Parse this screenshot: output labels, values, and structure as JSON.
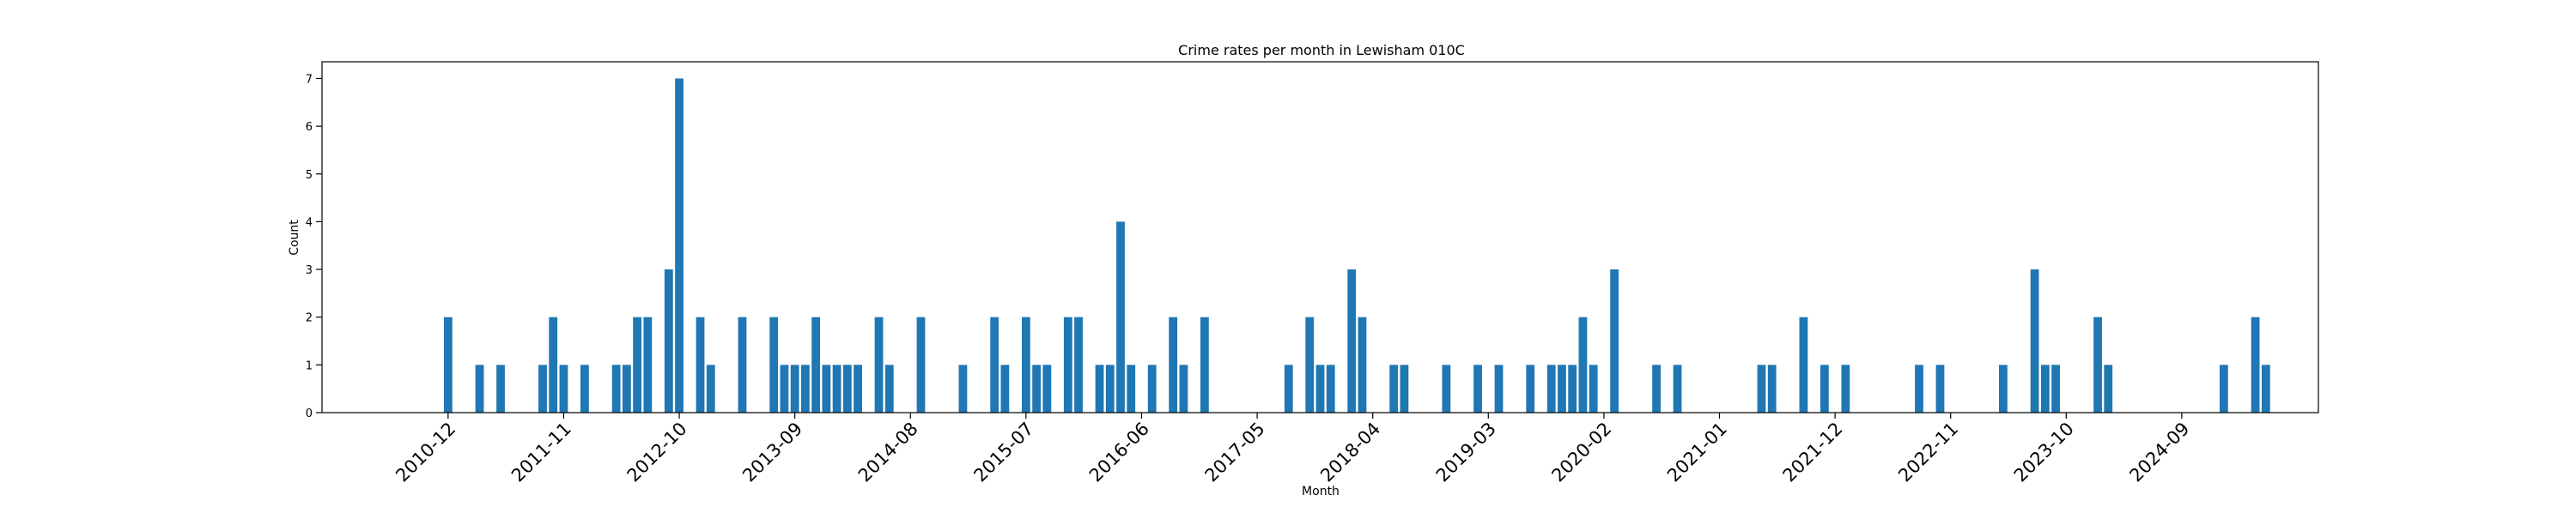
{
  "chart_data": {
    "type": "bar",
    "title": "Crime rates per month in Lewisham 010C",
    "xlabel": "Month",
    "ylabel": "Count",
    "ylim": [
      0,
      7.35
    ],
    "xlim": [
      "2009-12",
      "2025-10"
    ],
    "yticks": [
      0,
      1,
      2,
      3,
      4,
      5,
      6,
      7
    ],
    "xticks": [
      "2010-12",
      "2011-11",
      "2012-10",
      "2013-09",
      "2014-08",
      "2015-07",
      "2016-06",
      "2017-05",
      "2018-04",
      "2019-03",
      "2020-02",
      "2021-01",
      "2021-12",
      "2022-11",
      "2023-10",
      "2024-09"
    ],
    "color": "#1f77b4",
    "grid": false,
    "series": [
      {
        "x": [
          "2010-12",
          "2011-03",
          "2011-05",
          "2011-09",
          "2011-10",
          "2011-11",
          "2012-01",
          "2012-04",
          "2012-05",
          "2012-06",
          "2012-07",
          "2012-09",
          "2012-10",
          "2012-12",
          "2013-01",
          "2013-04",
          "2013-07",
          "2013-08",
          "2013-09",
          "2013-10",
          "2013-11",
          "2013-12",
          "2014-01",
          "2014-02",
          "2014-03",
          "2014-05",
          "2014-06",
          "2014-09",
          "2015-01",
          "2015-04",
          "2015-05",
          "2015-07",
          "2015-08",
          "2015-09",
          "2015-11",
          "2015-12",
          "2016-02",
          "2016-03",
          "2016-04",
          "2016-05",
          "2016-07",
          "2016-09",
          "2016-10",
          "2016-12",
          "2017-08",
          "2017-10",
          "2017-11",
          "2017-12",
          "2018-02",
          "2018-03",
          "2018-06",
          "2018-07",
          "2018-11",
          "2019-02",
          "2019-04",
          "2019-07",
          "2019-09",
          "2019-10",
          "2019-11",
          "2019-12",
          "2020-01",
          "2020-03",
          "2020-07",
          "2020-09",
          "2021-05",
          "2021-06",
          "2021-09",
          "2021-11",
          "2022-01",
          "2022-08",
          "2022-10",
          "2023-04",
          "2023-07",
          "2023-08",
          "2023-09",
          "2024-01",
          "2024-02",
          "2025-01",
          "2025-04",
          "2025-05"
        ],
        "values": [
          2,
          1,
          1,
          1,
          2,
          1,
          1,
          1,
          1,
          2,
          2,
          3,
          7,
          2,
          1,
          2,
          2,
          1,
          1,
          1,
          2,
          1,
          1,
          1,
          1,
          2,
          1,
          2,
          1,
          2,
          1,
          2,
          1,
          1,
          2,
          2,
          1,
          1,
          4,
          1,
          1,
          2,
          1,
          2,
          1,
          2,
          1,
          1,
          3,
          2,
          1,
          1,
          1,
          1,
          1,
          1,
          1,
          1,
          1,
          2,
          1,
          3,
          1,
          1,
          1,
          1,
          2,
          1,
          1,
          1,
          1,
          1,
          3,
          1,
          1,
          2,
          1,
          1,
          2,
          1
        ]
      }
    ]
  }
}
